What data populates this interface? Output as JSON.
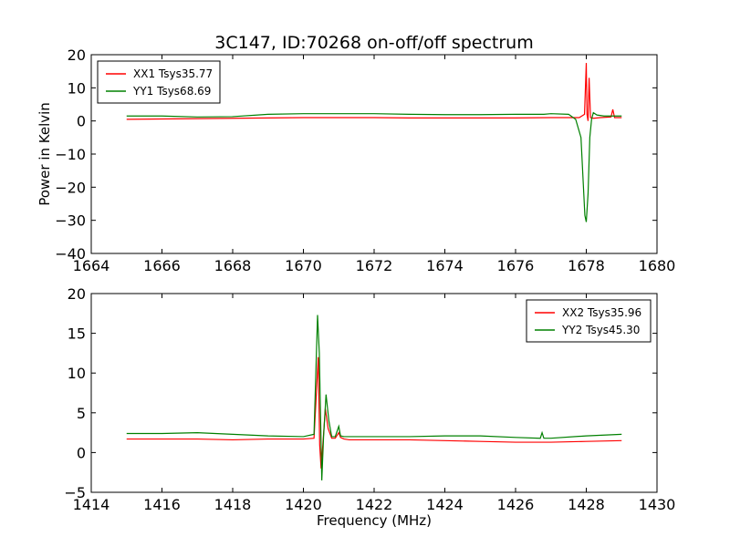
{
  "figure": {
    "title": "3C147, ID:70268 on-off/off spectrum"
  },
  "chart_data": [
    {
      "type": "line",
      "title": "3C147, ID:70268 on-off/off spectrum",
      "xlabel": "",
      "ylabel": "Power in Kelvin",
      "xlim": [
        1664,
        1680
      ],
      "ylim": [
        -40,
        20
      ],
      "xticks": [
        1664,
        1666,
        1668,
        1670,
        1672,
        1674,
        1676,
        1678,
        1680
      ],
      "yticks": [
        -40,
        -30,
        -20,
        -10,
        0,
        10,
        20
      ],
      "grid": false,
      "legend_position": "top-left",
      "series": [
        {
          "name": "XX1 Tsys35.77",
          "color": "#ff0000",
          "x": [
            1665.0,
            1666.0,
            1667.0,
            1668.0,
            1669.0,
            1670.0,
            1671.0,
            1672.0,
            1673.0,
            1674.0,
            1675.0,
            1676.0,
            1677.0,
            1677.5,
            1677.8,
            1677.95,
            1678.0,
            1678.02,
            1678.05,
            1678.08,
            1678.12,
            1678.2,
            1678.4,
            1678.7,
            1678.75,
            1678.8,
            1679.0
          ],
          "y": [
            0.5,
            0.6,
            0.7,
            0.8,
            0.9,
            1.0,
            1.0,
            1.0,
            0.9,
            0.9,
            0.9,
            0.9,
            1.0,
            1.0,
            1.0,
            2.0,
            17.5,
            2.0,
            0.0,
            13.0,
            1.0,
            0.8,
            1.0,
            1.2,
            3.5,
            1.0,
            1.0
          ]
        },
        {
          "name": "YY1 Tsys68.69",
          "color": "#008000",
          "x": [
            1665.0,
            1666.0,
            1667.0,
            1668.0,
            1669.0,
            1670.0,
            1671.0,
            1672.0,
            1673.0,
            1674.0,
            1675.0,
            1676.0,
            1676.8,
            1677.0,
            1677.5,
            1677.7,
            1677.85,
            1677.92,
            1677.96,
            1678.0,
            1678.05,
            1678.1,
            1678.15,
            1678.2,
            1678.3,
            1678.5,
            1679.0
          ],
          "y": [
            1.5,
            1.5,
            1.2,
            1.3,
            2.0,
            2.2,
            2.2,
            2.2,
            2.0,
            1.9,
            1.9,
            2.0,
            2.0,
            2.2,
            2.0,
            0.5,
            -5.0,
            -20.0,
            -28.5,
            -30.5,
            -22.0,
            -5.0,
            0.5,
            2.5,
            1.8,
            1.5,
            1.5
          ]
        }
      ]
    },
    {
      "type": "line",
      "title": "",
      "xlabel": "Frequency (MHz)",
      "ylabel": "",
      "xlim": [
        1414,
        1430
      ],
      "ylim": [
        -5,
        20
      ],
      "xticks": [
        1414,
        1416,
        1418,
        1420,
        1422,
        1424,
        1426,
        1428,
        1430
      ],
      "yticks": [
        -5,
        0,
        5,
        10,
        15,
        20
      ],
      "grid": false,
      "legend_position": "top-right",
      "series": [
        {
          "name": "XX2 Tsys35.96",
          "color": "#ff0000",
          "x": [
            1415.0,
            1416.0,
            1417.0,
            1418.0,
            1419.0,
            1420.0,
            1420.3,
            1420.42,
            1420.46,
            1420.5,
            1420.55,
            1420.62,
            1420.7,
            1420.8,
            1420.9,
            1421.0,
            1421.05,
            1421.15,
            1421.3,
            1422.0,
            1423.0,
            1424.0,
            1425.0,
            1426.0,
            1427.0,
            1428.0,
            1429.0
          ],
          "y": [
            1.7,
            1.7,
            1.7,
            1.6,
            1.7,
            1.7,
            1.8,
            12.0,
            1.0,
            -2.0,
            1.0,
            5.5,
            3.0,
            1.8,
            1.8,
            2.5,
            1.9,
            1.7,
            1.6,
            1.6,
            1.6,
            1.5,
            1.4,
            1.3,
            1.3,
            1.4,
            1.5
          ]
        },
        {
          "name": "YY2 Tsys45.30",
          "color": "#008000",
          "x": [
            1415.0,
            1416.0,
            1417.0,
            1418.0,
            1419.0,
            1420.0,
            1420.3,
            1420.4,
            1420.45,
            1420.52,
            1420.57,
            1420.64,
            1420.72,
            1420.8,
            1420.9,
            1421.0,
            1421.05,
            1421.15,
            1421.3,
            1422.0,
            1423.0,
            1424.0,
            1425.0,
            1426.0,
            1426.7,
            1426.75,
            1426.8,
            1427.0,
            1428.0,
            1429.0
          ],
          "y": [
            2.4,
            2.4,
            2.5,
            2.3,
            2.1,
            2.0,
            2.3,
            17.3,
            12.5,
            -3.5,
            2.0,
            7.3,
            4.0,
            2.0,
            2.0,
            3.3,
            2.1,
            2.0,
            2.0,
            2.0,
            2.0,
            2.1,
            2.1,
            1.9,
            1.8,
            2.5,
            1.8,
            1.8,
            2.1,
            2.3
          ]
        }
      ]
    }
  ]
}
